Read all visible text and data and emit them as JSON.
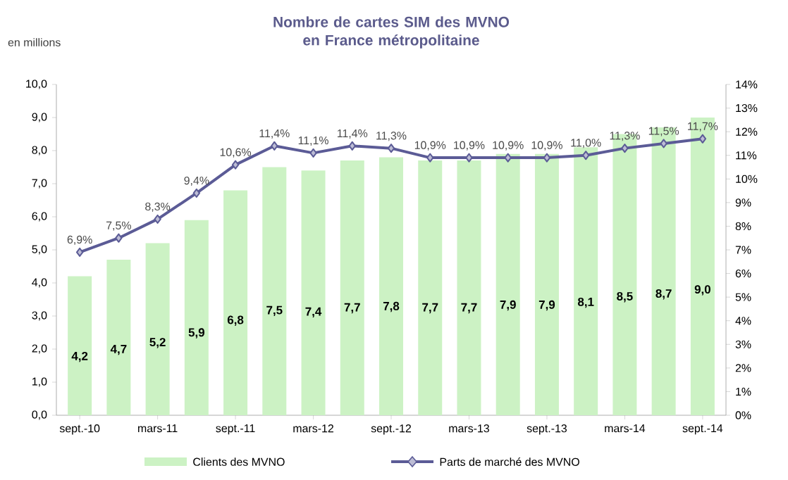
{
  "chart_data": {
    "type": "bar",
    "title": "Nombre de cartes SIM des MVNO\nen France métropolitaine",
    "ylabel": "en millions",
    "categories": [
      "sept.-10",
      null,
      "mars-11",
      null,
      "sept.-11",
      null,
      "mars-12",
      null,
      "sept.-12",
      null,
      "mars-13",
      null,
      "sept.-13",
      null,
      "mars-14",
      null,
      "sept.-14"
    ],
    "series": [
      {
        "name": "Clients des MVNO",
        "color": "#ccf2c4",
        "values": [
          4.2,
          4.7,
          5.2,
          5.9,
          6.8,
          7.5,
          7.4,
          7.7,
          7.8,
          7.7,
          7.7,
          7.9,
          7.9,
          8.1,
          8.5,
          8.7,
          9.0
        ],
        "value_labels": [
          "4,2",
          "4,7",
          "5,2",
          "5,9",
          "6,8",
          "7,5",
          "7,4",
          "7,7",
          "7,8",
          "7,7",
          "7,7",
          "7,9",
          "7,9",
          "8,1",
          "8,5",
          "8,7",
          "9,0"
        ]
      },
      {
        "name": "Parts de marché des MVNO",
        "type": "line",
        "axis": "y2",
        "color": "#5b5b96",
        "marker": "diamond",
        "values": [
          6.9,
          7.5,
          8.3,
          9.4,
          10.6,
          11.4,
          11.1,
          11.4,
          11.3,
          10.9,
          10.9,
          10.9,
          10.9,
          11.0,
          11.3,
          11.5,
          11.7
        ],
        "value_labels": [
          "6,9%",
          "7,5%",
          "8,3%",
          "9,4%",
          "10,6%",
          "11,4%",
          "11,1%",
          "11,4%",
          "11,3%",
          "10,9%",
          "10,9%",
          "10,9%",
          "10,9%",
          "11,0%",
          "11,3%",
          "11,5%",
          "11,7%"
        ]
      }
    ],
    "ylim": [
      0,
      10
    ],
    "yticks": [
      {
        "value": 0,
        "label": "0,0"
      },
      {
        "value": 1,
        "label": "1,0"
      },
      {
        "value": 2,
        "label": "2,0"
      },
      {
        "value": 3,
        "label": "3,0"
      },
      {
        "value": 4,
        "label": "4,0"
      },
      {
        "value": 5,
        "label": "5,0"
      },
      {
        "value": 6,
        "label": "6,0"
      },
      {
        "value": 7,
        "label": "7,0"
      },
      {
        "value": 8,
        "label": "8,0"
      },
      {
        "value": 9,
        "label": "9,0"
      },
      {
        "value": 10,
        "label": "10,0"
      }
    ],
    "y2lim": [
      0,
      14
    ],
    "y2ticks": [
      {
        "value": 0,
        "label": "0%"
      },
      {
        "value": 1,
        "label": "1%"
      },
      {
        "value": 2,
        "label": "2%"
      },
      {
        "value": 3,
        "label": "3%"
      },
      {
        "value": 4,
        "label": "4%"
      },
      {
        "value": 5,
        "label": "5%"
      },
      {
        "value": 6,
        "label": "6%"
      },
      {
        "value": 7,
        "label": "7%"
      },
      {
        "value": 8,
        "label": "8%"
      },
      {
        "value": 9,
        "label": "9%"
      },
      {
        "value": 10,
        "label": "10%"
      },
      {
        "value": 11,
        "label": "11%"
      },
      {
        "value": 12,
        "label": "12%"
      },
      {
        "value": 13,
        "label": "13%"
      },
      {
        "value": 14,
        "label": "14%"
      }
    ],
    "legend": "bottom"
  }
}
